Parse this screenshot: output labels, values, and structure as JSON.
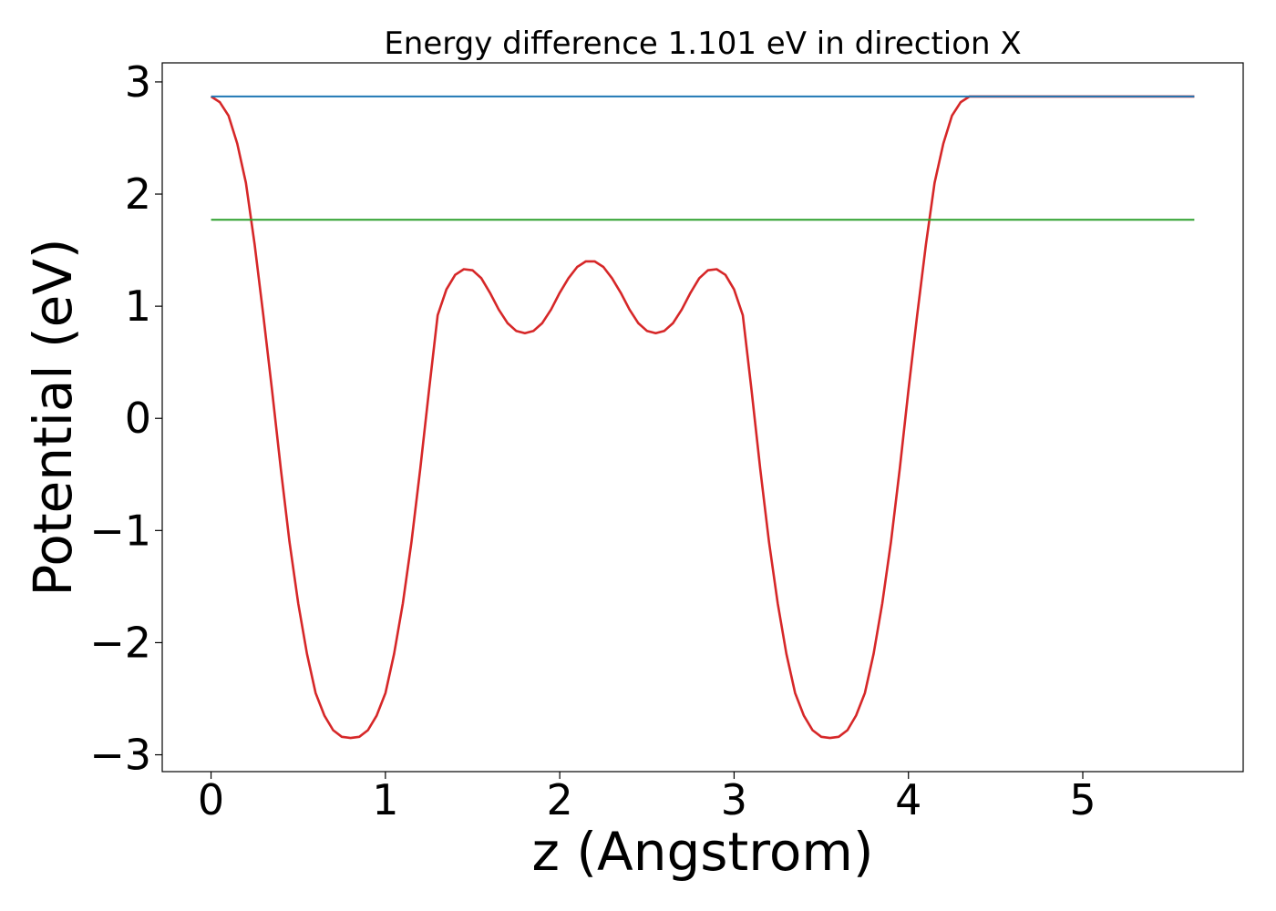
{
  "chart_data": {
    "type": "line",
    "title": "Energy difference 1.101 eV in direction X",
    "xlabel": "z (Angstrom)",
    "ylabel": "Potential (eV)",
    "xlim": [
      -0.28,
      5.92
    ],
    "ylim": [
      -3.15,
      3.17
    ],
    "xticks": [
      0,
      1,
      2,
      3,
      4,
      5
    ],
    "yticks": [
      3,
      2,
      1,
      0,
      -1,
      -2,
      -3
    ],
    "xtick_labels": [
      "0",
      "1",
      "2",
      "3",
      "4",
      "5"
    ],
    "ytick_labels": [
      "3",
      "2",
      "1",
      "0",
      "−1",
      "−2",
      "−3"
    ],
    "grid": false,
    "legend": null,
    "series": [
      {
        "color": "#d62728",
        "style": "curve",
        "x": [
          0.0,
          0.05,
          0.1,
          0.15,
          0.2,
          0.25,
          0.3,
          0.35,
          0.4,
          0.45,
          0.5,
          0.55,
          0.6,
          0.65,
          0.7,
          0.75,
          0.8,
          0.85,
          0.9,
          0.95,
          1.0,
          1.05,
          1.1,
          1.15,
          1.2,
          1.25,
          1.3,
          1.35,
          1.4,
          1.45,
          1.5,
          1.55,
          1.6,
          1.65,
          1.7,
          1.75,
          1.8,
          1.85,
          1.9,
          1.95,
          2.0,
          2.05,
          2.1,
          2.15,
          2.2,
          2.25,
          2.3,
          2.35,
          2.4,
          2.45,
          2.5,
          2.55,
          2.6,
          2.65,
          2.7,
          2.75,
          2.8,
          2.85,
          2.9,
          2.95,
          3.0,
          3.05,
          3.1,
          3.15,
          3.2,
          3.25,
          3.3,
          3.35,
          3.4,
          3.45,
          3.5,
          3.55,
          3.6,
          3.65,
          3.7,
          3.75,
          3.8,
          3.85,
          3.9,
          3.95,
          4.0,
          4.05,
          4.1,
          4.15,
          4.2,
          4.25,
          4.3,
          4.35,
          4.4,
          4.45,
          4.5,
          4.55,
          4.6,
          4.65,
          4.7,
          4.75,
          4.8,
          4.85,
          4.9,
          4.95,
          5.0,
          5.05,
          5.1,
          5.15,
          5.2,
          5.25,
          5.3,
          5.35,
          5.4,
          5.45,
          5.5,
          5.55,
          5.6,
          5.64
        ],
        "y": [
          2.87,
          2.82,
          2.7,
          2.45,
          2.1,
          1.55,
          0.92,
          0.25,
          -0.45,
          -1.1,
          -1.65,
          -2.1,
          -2.45,
          -2.65,
          -2.78,
          -2.84,
          -2.85,
          -2.84,
          -2.78,
          -2.65,
          -2.45,
          -2.1,
          -1.65,
          -1.1,
          -0.45,
          0.25,
          0.92,
          1.15,
          1.28,
          1.33,
          1.32,
          1.25,
          1.12,
          0.97,
          0.85,
          0.78,
          0.76,
          0.78,
          0.85,
          0.97,
          1.12,
          1.25,
          1.35,
          1.4,
          1.4,
          1.35,
          1.25,
          1.12,
          0.97,
          0.85,
          0.78,
          0.76,
          0.78,
          0.85,
          0.97,
          1.12,
          1.25,
          1.32,
          1.33,
          1.28,
          1.15,
          0.92,
          0.25,
          -0.45,
          -1.1,
          -1.65,
          -2.1,
          -2.45,
          -2.65,
          -2.78,
          -2.84,
          -2.85,
          -2.84,
          -2.78,
          -2.65,
          -2.45,
          -2.1,
          -1.65,
          -1.1,
          -0.45,
          0.25,
          0.92,
          1.55,
          2.1,
          2.45,
          2.7,
          2.82,
          2.87,
          2.87,
          2.87,
          2.87,
          2.87,
          2.87,
          2.87,
          2.87,
          2.87,
          2.87,
          2.87,
          2.87,
          2.87,
          2.87,
          2.87,
          2.87,
          2.87,
          2.87,
          2.87,
          2.87,
          2.87,
          2.87,
          2.87,
          2.87,
          2.87,
          2.87,
          2.87
        ]
      },
      {
        "color": "#1f77b4",
        "style": "line",
        "x": [
          0.0,
          5.64
        ],
        "y": [
          2.87,
          2.87
        ]
      },
      {
        "color": "#2ca02c",
        "style": "line",
        "x": [
          0.0,
          5.64
        ],
        "y": [
          1.77,
          1.77
        ]
      }
    ]
  }
}
